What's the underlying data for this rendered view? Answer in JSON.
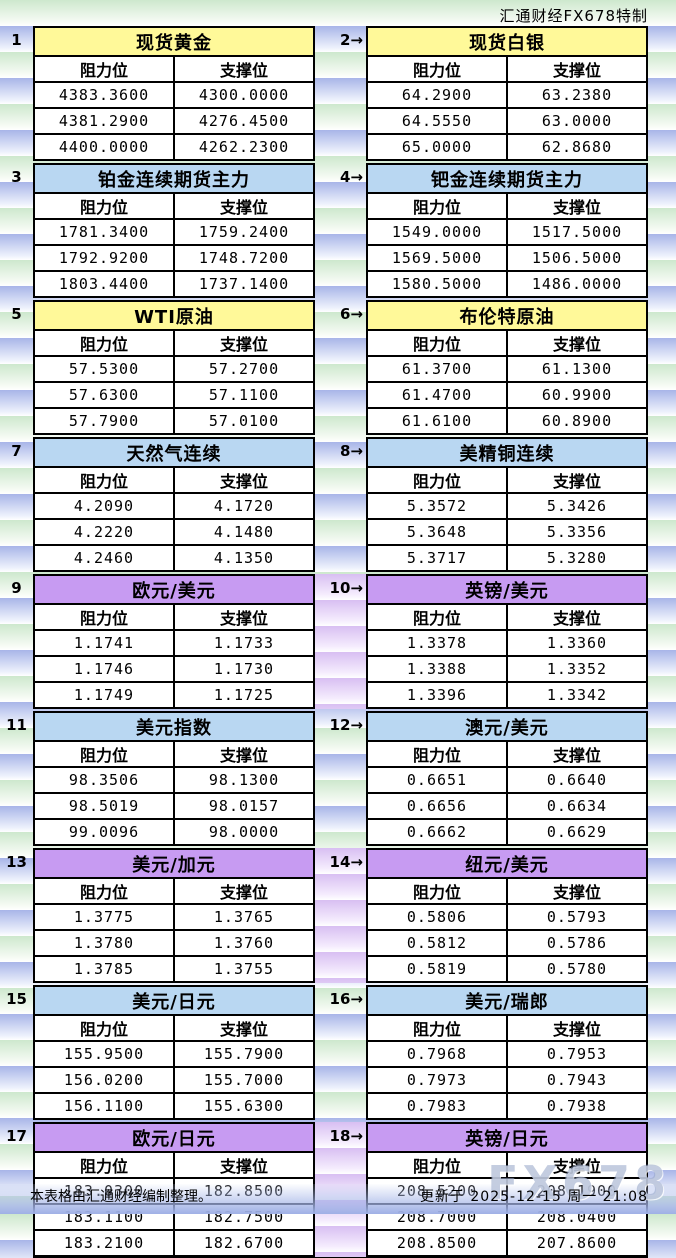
{
  "page": {
    "brand_title": "汇通财经FX678特制",
    "footer_note": "本表格由汇通财经编制整理。",
    "updated_text": "更新于 2025-12-15 周一 21:08",
    "watermark": "FX678"
  },
  "theme_colors": {
    "yellow": "#FFF999",
    "blue": "#B9D7F2",
    "purple": "#C79BF2",
    "border": "#000000",
    "stripe_blue": "#A8B5E8",
    "stripe_green": "#CDE8CD",
    "stripe_purple": "#D8BFF2"
  },
  "chart_data": [
    {
      "type": "table",
      "label": "1",
      "title": "现货黄金",
      "theme": "yellow",
      "columns": [
        "阻力位",
        "支撑位"
      ],
      "rows": [
        [
          "4383.3600",
          "4300.0000"
        ],
        [
          "4381.2900",
          "4276.4500"
        ],
        [
          "4400.0000",
          "4262.2300"
        ]
      ]
    },
    {
      "type": "table",
      "label": "2→",
      "title": "现货白银",
      "theme": "yellow",
      "columns": [
        "阻力位",
        "支撑位"
      ],
      "rows": [
        [
          "64.2900",
          "63.2380"
        ],
        [
          "64.5550",
          "63.0000"
        ],
        [
          "65.0000",
          "62.8680"
        ]
      ]
    },
    {
      "type": "table",
      "label": "3",
      "title": "铂金连续期货主力",
      "theme": "blue",
      "columns": [
        "阻力位",
        "支撑位"
      ],
      "rows": [
        [
          "1781.3400",
          "1759.2400"
        ],
        [
          "1792.9200",
          "1748.7200"
        ],
        [
          "1803.4400",
          "1737.1400"
        ]
      ]
    },
    {
      "type": "table",
      "label": "4→",
      "title": "钯金连续期货主力",
      "theme": "blue",
      "columns": [
        "阻力位",
        "支撑位"
      ],
      "rows": [
        [
          "1549.0000",
          "1517.5000"
        ],
        [
          "1569.5000",
          "1506.5000"
        ],
        [
          "1580.5000",
          "1486.0000"
        ]
      ]
    },
    {
      "type": "table",
      "label": "5",
      "title": "WTI原油",
      "theme": "yellow",
      "columns": [
        "阻力位",
        "支撑位"
      ],
      "rows": [
        [
          "57.5300",
          "57.2700"
        ],
        [
          "57.6300",
          "57.1100"
        ],
        [
          "57.7900",
          "57.0100"
        ]
      ]
    },
    {
      "type": "table",
      "label": "6→",
      "title": "布伦特原油",
      "theme": "yellow",
      "columns": [
        "阻力位",
        "支撑位"
      ],
      "rows": [
        [
          "61.3700",
          "61.1300"
        ],
        [
          "61.4700",
          "60.9900"
        ],
        [
          "61.6100",
          "60.8900"
        ]
      ]
    },
    {
      "type": "table",
      "label": "7",
      "title": "天然气连续",
      "theme": "blue",
      "columns": [
        "阻力位",
        "支撑位"
      ],
      "rows": [
        [
          "4.2090",
          "4.1720"
        ],
        [
          "4.2220",
          "4.1480"
        ],
        [
          "4.2460",
          "4.1350"
        ]
      ]
    },
    {
      "type": "table",
      "label": "8→",
      "title": "美精铜连续",
      "theme": "blue",
      "columns": [
        "阻力位",
        "支撑位"
      ],
      "rows": [
        [
          "5.3572",
          "5.3426"
        ],
        [
          "5.3648",
          "5.3356"
        ],
        [
          "5.3717",
          "5.3280"
        ]
      ]
    },
    {
      "type": "table",
      "label": "9",
      "title": "欧元/美元",
      "theme": "purple",
      "columns": [
        "阻力位",
        "支撑位"
      ],
      "rows": [
        [
          "1.1741",
          "1.1733"
        ],
        [
          "1.1746",
          "1.1730"
        ],
        [
          "1.1749",
          "1.1725"
        ]
      ]
    },
    {
      "type": "table",
      "label": "10→",
      "title": "英镑/美元",
      "theme": "purple",
      "columns": [
        "阻力位",
        "支撑位"
      ],
      "rows": [
        [
          "1.3378",
          "1.3360"
        ],
        [
          "1.3388",
          "1.3352"
        ],
        [
          "1.3396",
          "1.3342"
        ]
      ]
    },
    {
      "type": "table",
      "label": "11",
      "title": "美元指数",
      "theme": "blue",
      "columns": [
        "阻力位",
        "支撑位"
      ],
      "rows": [
        [
          "98.3506",
          "98.1300"
        ],
        [
          "98.5019",
          "98.0157"
        ],
        [
          "99.0096",
          "98.0000"
        ]
      ]
    },
    {
      "type": "table",
      "label": "12→",
      "title": "澳元/美元",
      "theme": "blue",
      "columns": [
        "阻力位",
        "支撑位"
      ],
      "rows": [
        [
          "0.6651",
          "0.6640"
        ],
        [
          "0.6656",
          "0.6634"
        ],
        [
          "0.6662",
          "0.6629"
        ]
      ]
    },
    {
      "type": "table",
      "label": "13",
      "title": "美元/加元",
      "theme": "purple",
      "columns": [
        "阻力位",
        "支撑位"
      ],
      "rows": [
        [
          "1.3775",
          "1.3765"
        ],
        [
          "1.3780",
          "1.3760"
        ],
        [
          "1.3785",
          "1.3755"
        ]
      ]
    },
    {
      "type": "table",
      "label": "14→",
      "title": "纽元/美元",
      "theme": "purple",
      "columns": [
        "阻力位",
        "支撑位"
      ],
      "rows": [
        [
          "0.5806",
          "0.5793"
        ],
        [
          "0.5812",
          "0.5786"
        ],
        [
          "0.5819",
          "0.5780"
        ]
      ]
    },
    {
      "type": "table",
      "label": "15",
      "title": "美元/日元",
      "theme": "blue",
      "columns": [
        "阻力位",
        "支撑位"
      ],
      "rows": [
        [
          "155.9500",
          "155.7900"
        ],
        [
          "156.0200",
          "155.7000"
        ],
        [
          "156.1100",
          "155.6300"
        ]
      ]
    },
    {
      "type": "table",
      "label": "16→",
      "title": "美元/瑞郎",
      "theme": "blue",
      "columns": [
        "阻力位",
        "支撑位"
      ],
      "rows": [
        [
          "0.7968",
          "0.7953"
        ],
        [
          "0.7973",
          "0.7943"
        ],
        [
          "0.7983",
          "0.7938"
        ]
      ]
    },
    {
      "type": "table",
      "label": "17",
      "title": "欧元/日元",
      "theme": "purple",
      "columns": [
        "阻力位",
        "支撑位"
      ],
      "rows": [
        [
          "183.0300",
          "182.8500"
        ],
        [
          "183.1100",
          "182.7500"
        ],
        [
          "183.2100",
          "182.6700"
        ]
      ]
    },
    {
      "type": "table",
      "label": "18→",
      "title": "英镑/日元",
      "theme": "purple",
      "columns": [
        "阻力位",
        "支撑位"
      ],
      "rows": [
        [
          "208.5200",
          "208.1900"
        ],
        [
          "208.7000",
          "208.0400"
        ],
        [
          "208.8500",
          "207.8600"
        ]
      ]
    }
  ]
}
